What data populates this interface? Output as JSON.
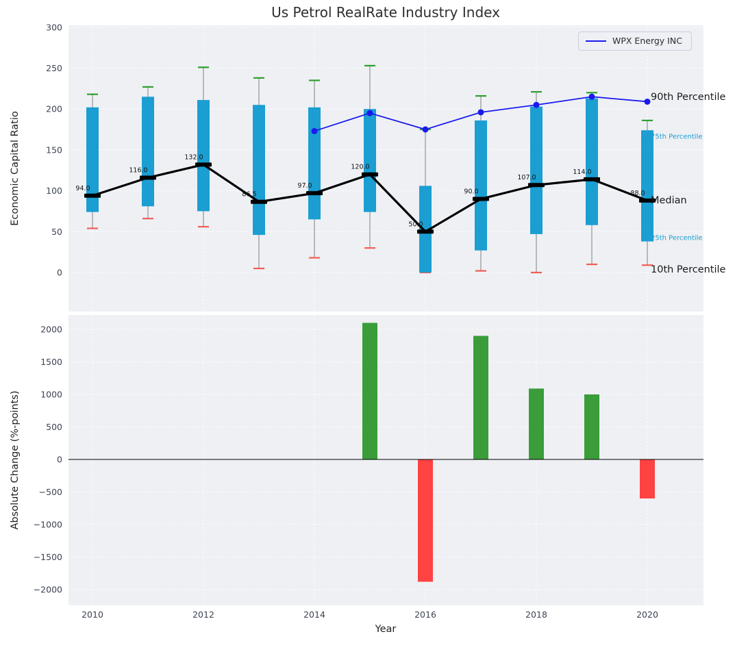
{
  "chart_data": [
    {
      "type": "box",
      "title": "Us Petrol RealRate Industry Index",
      "ylabel": "Economic Capital Ratio",
      "yticks": [
        0,
        50,
        100,
        150,
        200,
        250,
        300
      ],
      "ylim": [
        -48,
        303
      ],
      "grid": true,
      "xticks": [
        2010,
        2012,
        2014,
        2016,
        2018,
        2020
      ],
      "years": [
        2010,
        2011,
        2012,
        2013,
        2014,
        2015,
        2016,
        2017,
        2018,
        2019,
        2020
      ],
      "p90": [
        218,
        227,
        251,
        238,
        235,
        253,
        175,
        216,
        221,
        220,
        186
      ],
      "p75": [
        202,
        215,
        211,
        205,
        202,
        200,
        106,
        186,
        203,
        213,
        174
      ],
      "median": [
        94,
        116,
        132,
        86.5,
        97,
        120,
        50,
        90,
        107,
        114,
        88
      ],
      "median_labels": [
        "94.0",
        "116.0",
        "132.0",
        "86.5",
        "97.0",
        "120.0",
        "50.0",
        "90.0",
        "107.0",
        "114.0",
        "88.0"
      ],
      "p25": [
        74,
        81,
        75,
        46,
        65,
        74,
        0,
        27,
        47,
        58,
        38
      ],
      "p10": [
        54,
        66,
        56,
        5,
        18,
        30,
        0,
        2,
        0,
        10,
        9
      ],
      "wpx": {
        "name": "WPX Energy INC",
        "x": [
          2014,
          2015,
          2016,
          2017,
          2018,
          2019,
          2020
        ],
        "y": [
          173,
          195,
          175,
          196,
          205,
          215,
          209
        ]
      },
      "annotations": [
        {
          "label": "90th Percentile",
          "value": 214,
          "color": "#1a1a1a",
          "size": 14.5
        },
        {
          "label": "75th Percentile",
          "value": 166,
          "color": "#1b9ed2",
          "size": 10
        },
        {
          "label": "Median",
          "value": 88,
          "color": "#1a1a1a",
          "size": 14.5
        },
        {
          "label": "25th Percentile",
          "value": 42,
          "color": "#1b9ed2",
          "size": 10
        },
        {
          "label": "10th Percentile",
          "value": 3,
          "color": "#1a1a1a",
          "size": 14.5
        }
      ],
      "legend_position": "upper right",
      "colors": {
        "box": "#1b9ed2",
        "cap_top": "#2ca02c",
        "cap_bottom": "#f25c54",
        "median": "#000000",
        "wpx_line": "#1a1aee",
        "panel": "#eef0f4",
        "grid": "#ffffff",
        "tick": "#3b4252",
        "whisker": "#9a9a9a"
      }
    },
    {
      "type": "bar",
      "ylabel": "Absolute Change (%-points)",
      "xlabel": "Year",
      "ylim": [
        -2242,
        2222
      ],
      "grid": true,
      "yticks": [
        {
          "v": 2000,
          "label": "2000"
        },
        {
          "v": 1500,
          "label": "1500"
        },
        {
          "v": 1000,
          "label": "1000"
        },
        {
          "v": 500,
          "label": "500"
        },
        {
          "v": 0,
          "label": "0"
        },
        {
          "v": -500,
          "label": "−500"
        },
        {
          "v": -1000,
          "label": "−1000"
        },
        {
          "v": -1500,
          "label": "−1500"
        },
        {
          "v": -2000,
          "label": "−2000"
        }
      ],
      "xticks": [
        2010,
        2012,
        2014,
        2016,
        2018,
        2020
      ],
      "x": [
        2015,
        2016,
        2017,
        2018,
        2019,
        2020
      ],
      "values": [
        2100,
        -1880,
        1900,
        1090,
        1000,
        -600
      ],
      "colors": {
        "positive": "#3a9d3a",
        "negative": "#ff4242"
      }
    }
  ]
}
